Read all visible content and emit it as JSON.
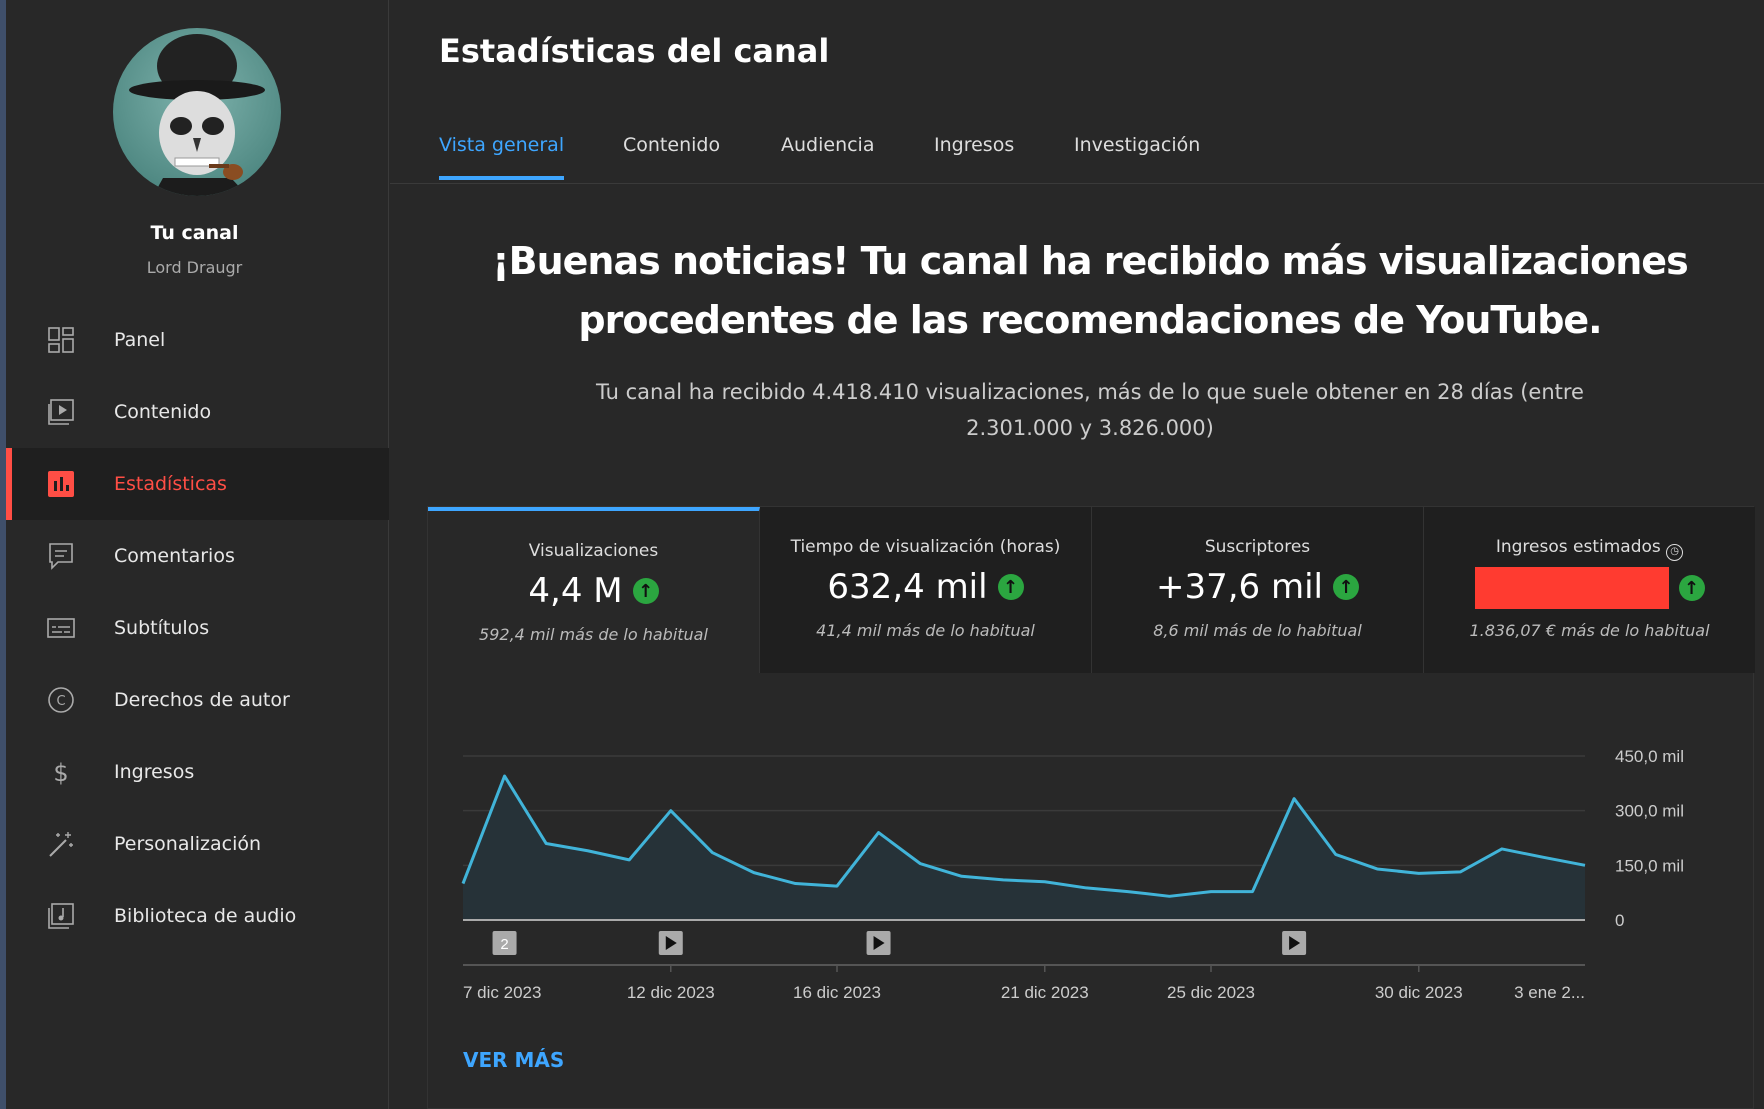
{
  "sidebar": {
    "channel_label": "Tu canal",
    "channel_name": "Lord Draugr",
    "items": [
      {
        "label": "Panel",
        "icon": "dashboard-icon"
      },
      {
        "label": "Contenido",
        "icon": "video-icon"
      },
      {
        "label": "Estadísticas",
        "icon": "analytics-icon",
        "active": true
      },
      {
        "label": "Comentarios",
        "icon": "comment-icon"
      },
      {
        "label": "Subtítulos",
        "icon": "subtitles-icon"
      },
      {
        "label": "Derechos de autor",
        "icon": "copyright-icon"
      },
      {
        "label": "Ingresos",
        "icon": "dollar-icon"
      },
      {
        "label": "Personalización",
        "icon": "magic-wand-icon"
      },
      {
        "label": "Biblioteca de audio",
        "icon": "audio-library-icon"
      }
    ]
  },
  "header": {
    "title": "Estadísticas del canal"
  },
  "tabs": [
    "Vista general",
    "Contenido",
    "Audiencia",
    "Ingresos",
    "Investigación"
  ],
  "banner": {
    "headline_1": "¡Buenas noticias! Tu canal ha recibido más visualizaciones",
    "headline_2": "procedentes de las recomendaciones de YouTube.",
    "text": "Tu canal ha recibido 4.418.410 visualizaciones, más de lo que suele obtener en 28 días (entre 2.301.000 y 3.826.000)"
  },
  "metrics": [
    {
      "label": "Visualizaciones",
      "value": "4,4 M",
      "compare": "592,4 mil más de lo habitual"
    },
    {
      "label": "Tiempo de visualización (horas)",
      "value": "632,4 mil",
      "compare": "41,4 mil más de lo habitual"
    },
    {
      "label": "Suscriptores",
      "value": "+37,6 mil",
      "compare": "8,6 mil más de lo habitual"
    },
    {
      "label": "Ingresos estimados",
      "value": "",
      "compare": "1.836,07 € más de lo habitual"
    }
  ],
  "colors": {
    "accent": "#3ea6ff",
    "line": "#41b4d9",
    "up": "#2ba640",
    "red": "#ff4e45"
  },
  "chart_data": {
    "type": "area",
    "series": [
      {
        "name": "Visualizaciones",
        "values": [
          100,
          395,
          210,
          190,
          165,
          300,
          185,
          130,
          100,
          93,
          240,
          155,
          120,
          110,
          105,
          88,
          78,
          65,
          78,
          78,
          333,
          180,
          140,
          128,
          132,
          195,
          172,
          150
        ]
      }
    ],
    "x_ticks": [
      {
        "index": 0,
        "label": "7 dic 2023"
      },
      {
        "index": 5,
        "label": "12 dic 2023"
      },
      {
        "index": 9,
        "label": "16 dic 2023"
      },
      {
        "index": 14,
        "label": "21 dic 2023"
      },
      {
        "index": 18,
        "label": "25 dic 2023"
      },
      {
        "index": 23,
        "label": "30 dic 2023"
      },
      {
        "index": 27,
        "label": "3 ene 2..."
      }
    ],
    "y_ticks": [
      {
        "value": 0,
        "label": "0"
      },
      {
        "value": 150,
        "label": "150,0 mil"
      },
      {
        "value": 300,
        "label": "300,0 mil"
      },
      {
        "value": 450,
        "label": "450,0 mil"
      }
    ],
    "ylim": [
      0,
      450
    ],
    "y_unit": "mil",
    "markers": [
      {
        "index": 1,
        "label": "2"
      },
      {
        "index": 5,
        "label": ""
      },
      {
        "index": 10,
        "label": ""
      },
      {
        "index": 20,
        "label": ""
      }
    ]
  },
  "see_more": "VER MÁS"
}
